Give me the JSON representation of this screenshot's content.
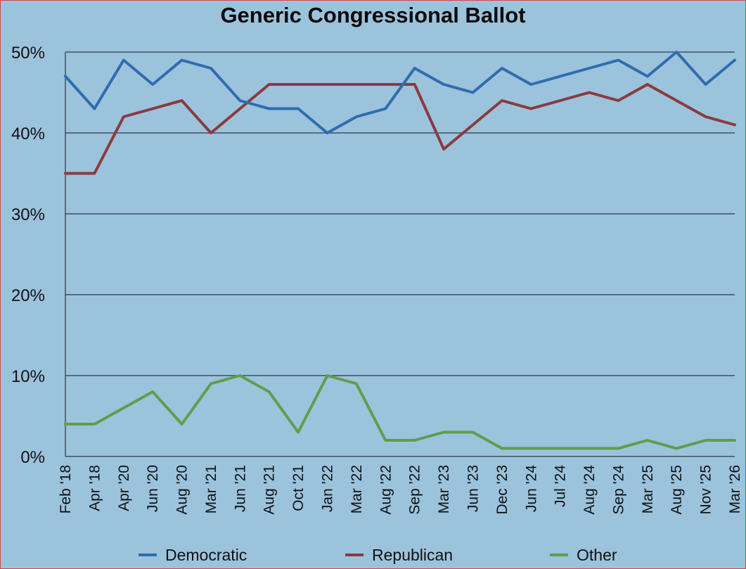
{
  "chart_data": {
    "type": "line",
    "title": "Generic Congressional Ballot",
    "xlabel": "",
    "ylabel": "",
    "ylim": [
      0,
      50
    ],
    "y_ticks": [
      "0%",
      "10%",
      "20%",
      "30%",
      "40%",
      "50%"
    ],
    "y_tick_values": [
      0,
      10,
      20,
      30,
      40,
      50
    ],
    "grid": true,
    "legend_position": "bottom",
    "categories": [
      "Feb '18",
      "Apr '18",
      "Apr '20",
      "Jun '20",
      "Aug '20",
      "Mar '21",
      "Jun '21",
      "Aug '21",
      "Oct '21",
      "Jan '22",
      "Mar '22",
      "Aug '22",
      "Sep '22",
      "Mar '23",
      "Jun '23",
      "Dec '23",
      "Jun '24",
      "Jul '24",
      "Aug '24",
      "Sep '24",
      "Mar '25",
      "Aug '25",
      "Nov '25",
      "Mar '26"
    ],
    "series": [
      {
        "name": "Democratic",
        "color": "#2e6db0",
        "values": [
          47,
          43,
          49,
          46,
          49,
          48,
          44,
          43,
          43,
          40,
          42,
          43,
          48,
          46,
          45,
          48,
          46,
          47,
          48,
          49,
          47,
          50,
          46,
          49
        ]
      },
      {
        "name": "Republican",
        "color": "#8b3a40",
        "values": [
          35,
          35,
          42,
          43,
          44,
          40,
          43,
          46,
          46,
          46,
          46,
          46,
          46,
          38,
          41,
          44,
          43,
          44,
          45,
          44,
          46,
          44,
          42,
          41
        ]
      },
      {
        "name": "Other",
        "color": "#5f9e4d",
        "values": [
          4,
          4,
          6,
          8,
          4,
          9,
          10,
          8,
          3,
          10,
          9,
          2,
          2,
          3,
          3,
          1,
          1,
          1,
          1,
          1,
          2,
          1,
          2,
          2
        ]
      }
    ]
  }
}
